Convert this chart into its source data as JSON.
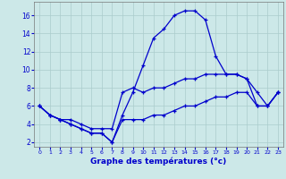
{
  "xlabel": "Graphe des températures (°c)",
  "bg_color": "#cce8e8",
  "grid_color": "#aacccc",
  "line_color": "#0000cc",
  "hours": [
    0,
    1,
    2,
    3,
    4,
    5,
    6,
    7,
    8,
    9,
    10,
    11,
    12,
    13,
    14,
    15,
    16,
    17,
    18,
    19,
    20,
    21,
    22,
    23
  ],
  "curve_main": [
    6.0,
    5.0,
    4.5,
    4.0,
    3.5,
    3.0,
    3.0,
    2.0,
    5.0,
    7.5,
    10.5,
    13.5,
    14.5,
    16.0,
    16.5,
    16.5,
    15.5,
    11.5,
    9.5,
    9.5,
    9.0,
    6.0,
    6.0,
    7.5
  ],
  "curve_mid": [
    6.0,
    5.0,
    4.5,
    4.5,
    4.0,
    3.5,
    3.5,
    3.5,
    7.5,
    8.0,
    7.5,
    8.0,
    8.0,
    8.5,
    9.0,
    9.0,
    9.5,
    9.5,
    9.5,
    9.5,
    9.0,
    7.5,
    6.0,
    7.5
  ],
  "curve_bottom": [
    6.0,
    5.0,
    4.5,
    4.0,
    3.5,
    3.0,
    3.0,
    2.0,
    4.5,
    4.5,
    4.5,
    5.0,
    5.0,
    5.5,
    6.0,
    6.0,
    6.5,
    7.0,
    7.0,
    7.5,
    7.5,
    6.0,
    6.0,
    7.5
  ],
  "ylim": [
    1.5,
    17.5
  ],
  "xlim": [
    -0.5,
    23.5
  ],
  "yticks": [
    2,
    4,
    6,
    8,
    10,
    12,
    14,
    16
  ],
  "xticks": [
    0,
    1,
    2,
    3,
    4,
    5,
    6,
    7,
    8,
    9,
    10,
    11,
    12,
    13,
    14,
    15,
    16,
    17,
    18,
    19,
    20,
    21,
    22,
    23
  ],
  "xlabel_fontsize": 6.5,
  "tick_fontsize_x": 4.5,
  "tick_fontsize_y": 5.5
}
